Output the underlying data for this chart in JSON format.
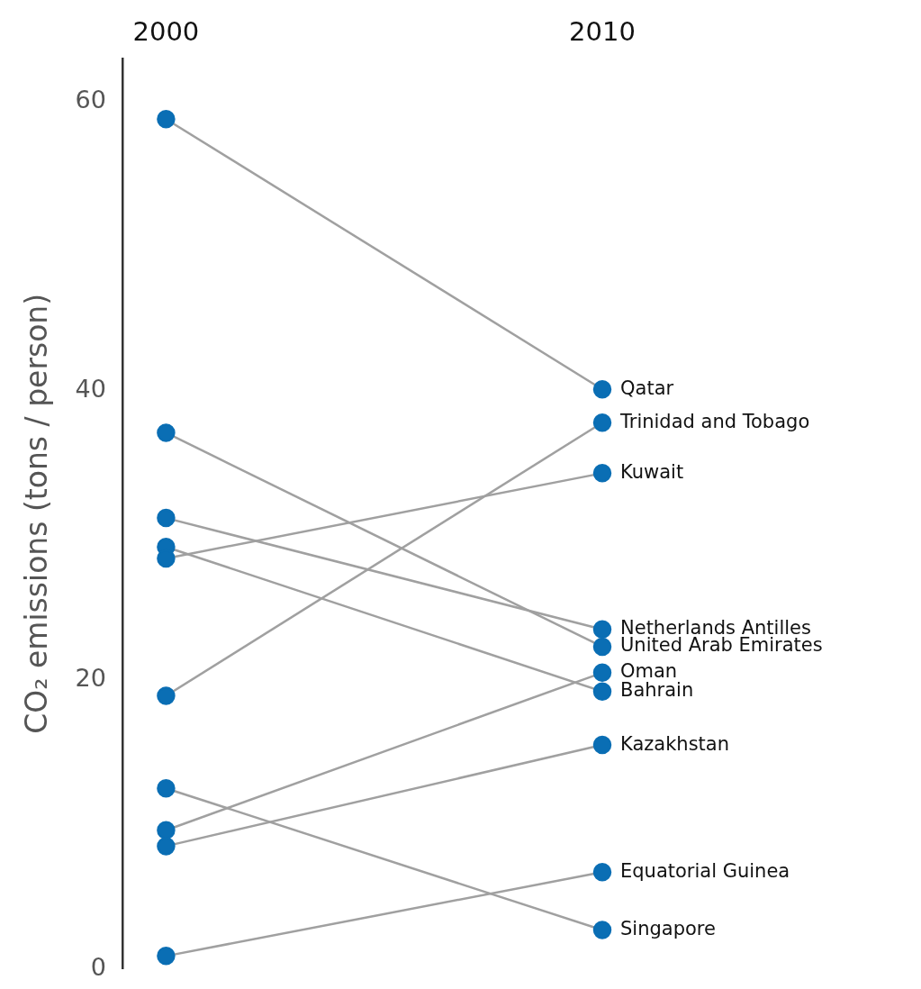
{
  "chart_data": {
    "type": "line",
    "ylabel": "CO₂ emissions (tons / person)",
    "categories": [
      "2000",
      "2010"
    ],
    "ylim": [
      0,
      63
    ],
    "yticks": [
      0,
      20,
      40,
      60
    ],
    "grid": false,
    "legend": false,
    "marker": "circle",
    "line_style": "solid",
    "series": [
      {
        "name": "Qatar",
        "color": "#a0a0a0",
        "colors": [
          "#0a6eb4",
          "#0a6eb4"
        ],
        "values": [
          58.8,
          40.1
        ]
      },
      {
        "name": "Trinidad and Tobago",
        "color": "#a0a0a0",
        "colors": [
          "#0a6eb4",
          "#0a6eb4"
        ],
        "values": [
          18.9,
          37.8
        ]
      },
      {
        "name": "Kuwait",
        "color": "#a0a0a0",
        "colors": [
          "#0a6eb4",
          "#0a6eb4"
        ],
        "values": [
          28.4,
          34.3
        ]
      },
      {
        "name": "Netherlands Antilles",
        "color": "#a0a0a0",
        "colors": [
          "#0a6eb4",
          "#0a6eb4"
        ],
        "values": [
          31.2,
          23.5
        ]
      },
      {
        "name": "United Arab Emirates",
        "color": "#a0a0a0",
        "colors": [
          "#0a6eb4",
          "#0a6eb4"
        ],
        "values": [
          37.1,
          22.3
        ]
      },
      {
        "name": "Oman",
        "color": "#a0a0a0",
        "colors": [
          "#0a6eb4",
          "#0a6eb4"
        ],
        "values": [
          9.6,
          20.5
        ]
      },
      {
        "name": "Bahrain",
        "color": "#a0a0a0",
        "colors": [
          "#0a6eb4",
          "#0a6eb4"
        ],
        "values": [
          29.2,
          19.2
        ]
      },
      {
        "name": "Kazakhstan",
        "color": "#a0a0a0",
        "colors": [
          "#0a6eb4",
          "#0a6eb4"
        ],
        "values": [
          8.5,
          15.5
        ]
      },
      {
        "name": "Equatorial Guinea",
        "color": "#a0a0a0",
        "colors": [
          "#0a6eb4",
          "#0a6eb4"
        ],
        "values": [
          0.9,
          6.7
        ]
      },
      {
        "name": "Singapore",
        "color": "#a0a0a0",
        "colors": [
          "#0a6eb4",
          "#0a6eb4"
        ],
        "values": [
          12.5,
          2.7
        ]
      }
    ]
  }
}
